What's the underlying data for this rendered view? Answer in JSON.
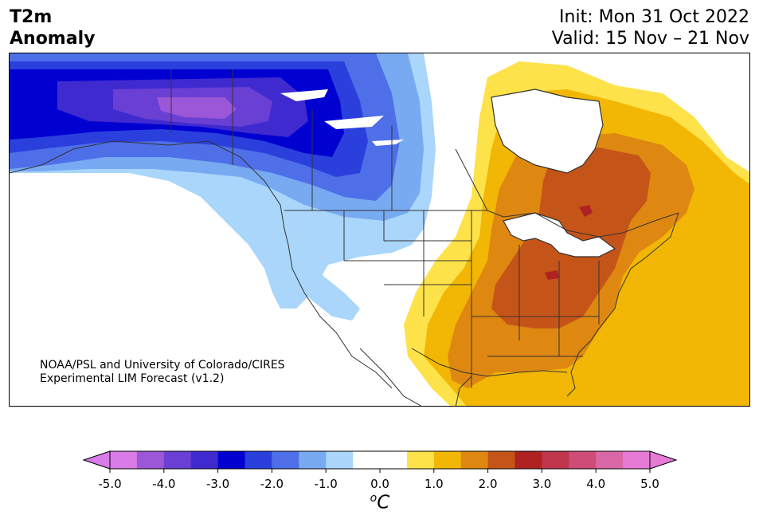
{
  "title": {
    "line1": "T2m",
    "line2": "Anomaly"
  },
  "run": {
    "init": "Init: Mon 31 Oct 2022",
    "valid": "Valid: 15 Nov – 21 Nov"
  },
  "credit": {
    "line1": "NOAA/PSL and University of Colorado/CIRES",
    "line2": "Experimental LIM Forecast (v1.2)"
  },
  "colorbar": {
    "units_prefix": "o",
    "units_main": "C",
    "ticks": [
      "-5.0",
      "-4.0",
      "-3.0",
      "-2.0",
      "-1.0",
      "0.0",
      "1.0",
      "2.0",
      "3.0",
      "4.0",
      "5.0"
    ],
    "colors": [
      "#d97be8",
      "#9b57d8",
      "#6a3fd4",
      "#3f2ad0",
      "#0000d0",
      "#2a3fdc",
      "#4e6fe8",
      "#78aaf2",
      "#a9d6fa",
      "#ffffff",
      "#ffffff",
      "#fde24a",
      "#f2b705",
      "#de8811",
      "#c55418",
      "#b02222",
      "#c0364d",
      "#d04c78",
      "#d967a6",
      "#e67bd5"
    ],
    "under_color": "#d97be8",
    "over_color": "#e67bd5"
  },
  "map": {
    "anomaly_colors": {
      "cold_1": "#a9d6fa",
      "cold_2": "#78aaf2",
      "cold_3": "#4e6fe8",
      "cold_4": "#2a3fdc",
      "cold_5": "#0000d0",
      "cold_6": "#3f2ad0",
      "cold_7": "#6a3fd4",
      "cold_8": "#9b57d8",
      "warm_1": "#fde24a",
      "warm_2": "#f2b705",
      "warm_3": "#de8811",
      "warm_4": "#c55418",
      "warm_5": "#b02222"
    },
    "boundary_color": "#333333"
  }
}
